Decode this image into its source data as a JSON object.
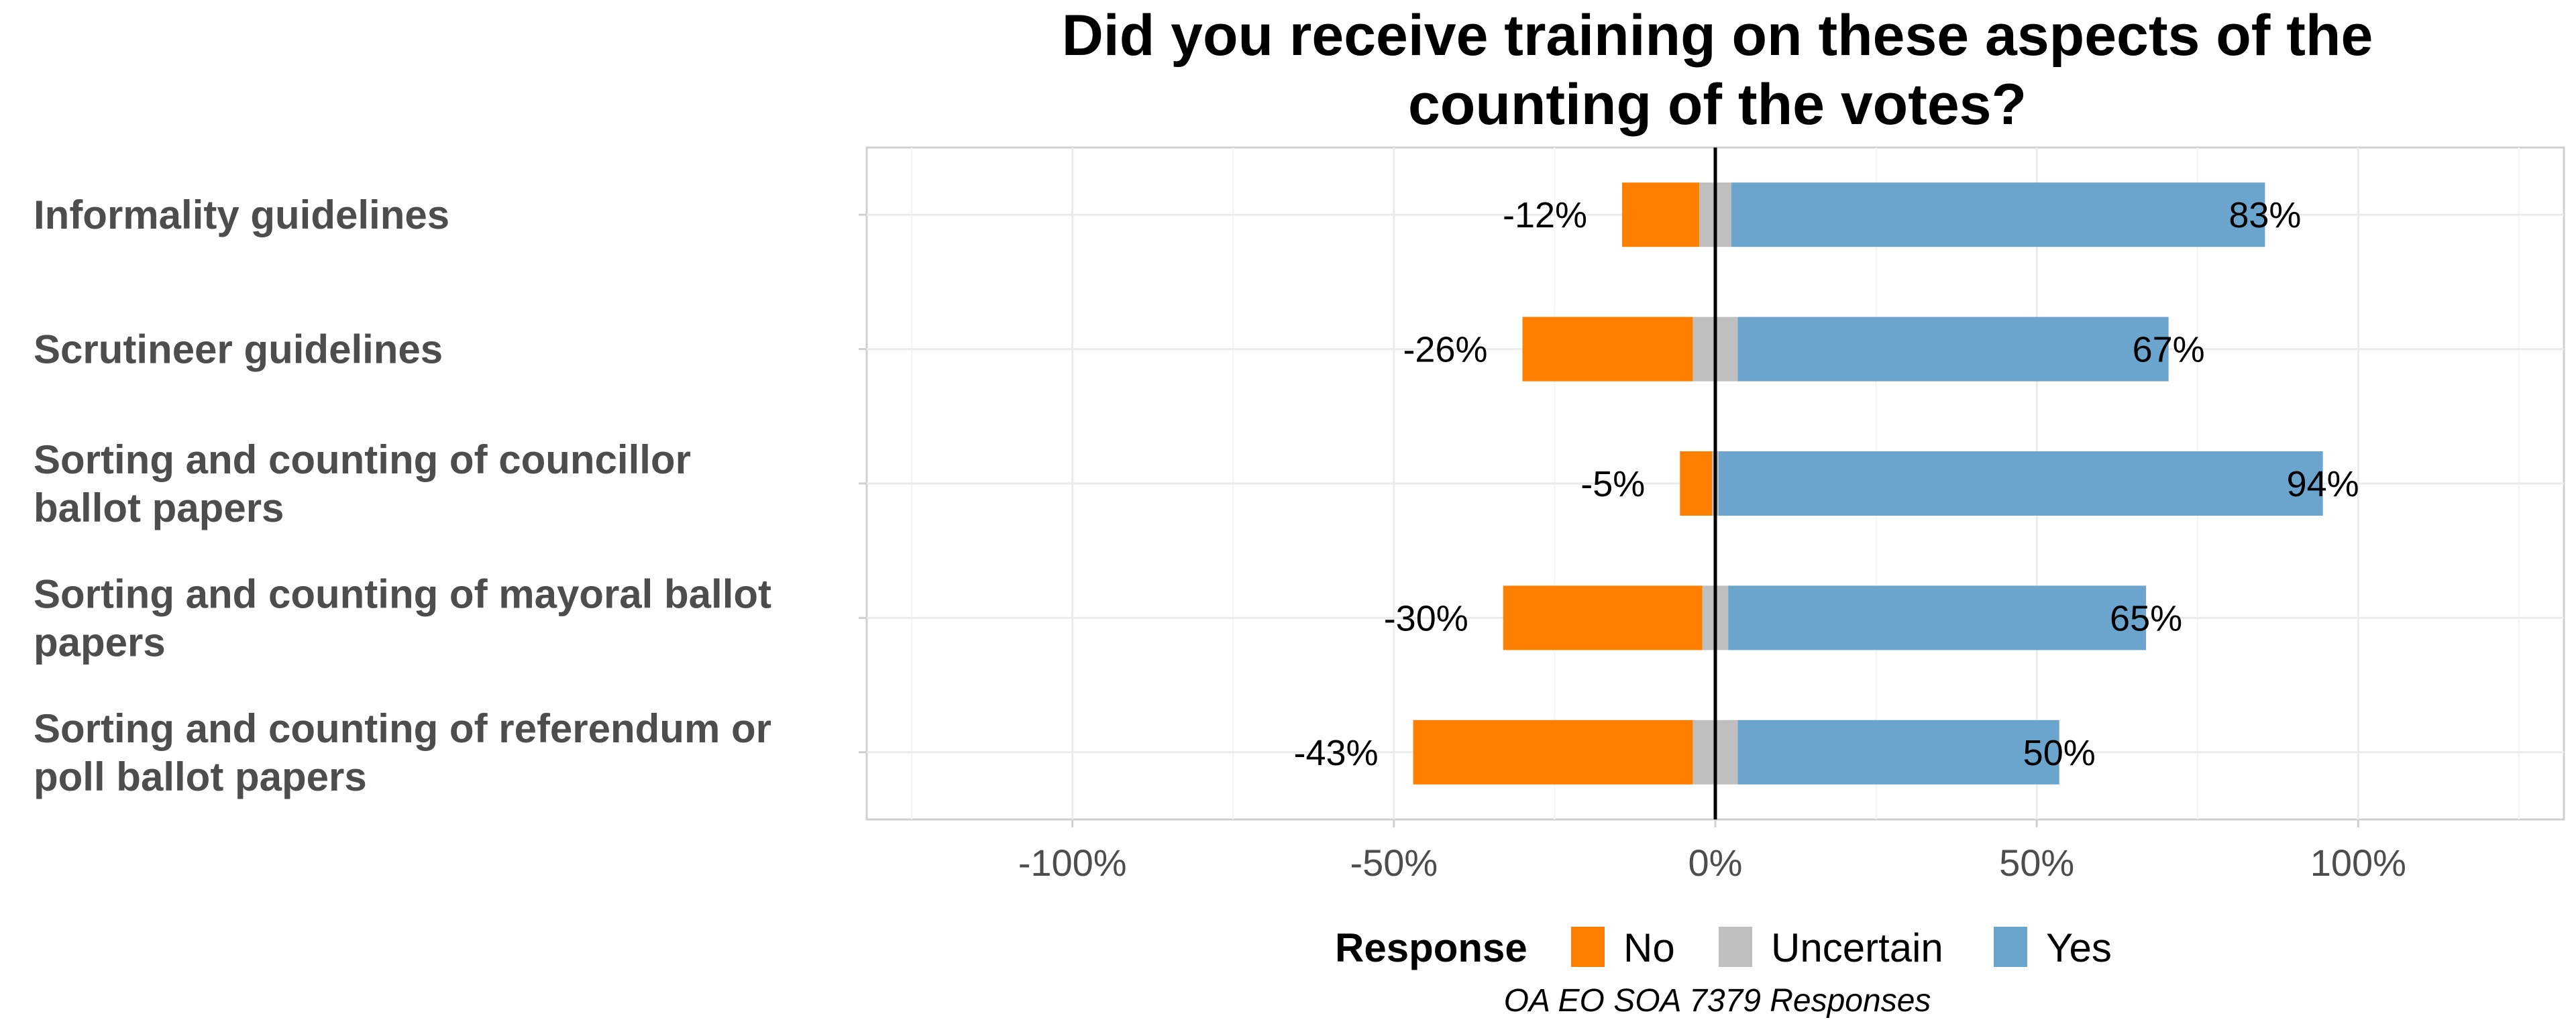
{
  "chart_data": {
    "type": "bar",
    "orientation": "horizontal-diverging",
    "title": "Did you receive training on these aspects of the counting of the votes?",
    "categories": [
      "Informality guidelines",
      "Scrutineer guidelines",
      "Sorting and counting of councillor ballot papers",
      "Sorting and counting of mayoral ballot papers",
      "Sorting and counting of referendum or poll ballot papers"
    ],
    "category_lines": [
      [
        "Informality guidelines"
      ],
      [
        "Scrutineer guidelines"
      ],
      [
        "Sorting and counting of councillor",
        "ballot papers"
      ],
      [
        "Sorting and counting of mayoral ballot",
        "papers"
      ],
      [
        "Sorting and counting of referendum or",
        "poll ballot papers"
      ]
    ],
    "series": [
      {
        "name": "No",
        "color": "#ff7f00",
        "values": [
          -12,
          -26,
          -5,
          -30,
          -43
        ],
        "offset_values": [
          -14.5,
          -30,
          -5.5,
          -33,
          -47
        ]
      },
      {
        "name": "Uncertain",
        "color": "#bfbfbf",
        "values": [
          5,
          7,
          1,
          4,
          7
        ]
      },
      {
        "name": "Yes",
        "color": "#6ba5cd",
        "values": [
          83,
          67,
          94,
          65,
          50
        ]
      }
    ],
    "data_labels": {
      "no": [
        "-12%",
        "-26%",
        "-5%",
        "-30%",
        "-43%"
      ],
      "yes": [
        "83%",
        "67%",
        "94%",
        "65%",
        "50%"
      ]
    },
    "x_ticks": [
      "-100%",
      "-50%",
      "0%",
      "50%",
      "100%"
    ],
    "x_tick_values": [
      -100,
      -50,
      0,
      50,
      100
    ],
    "xlim": [
      -132,
      132
    ],
    "grid": true,
    "legend": {
      "title": "Response",
      "position": "bottom",
      "items": [
        "No",
        "Uncertain",
        "Yes"
      ]
    },
    "caption": "OA EO SOA 7379 Responses"
  }
}
